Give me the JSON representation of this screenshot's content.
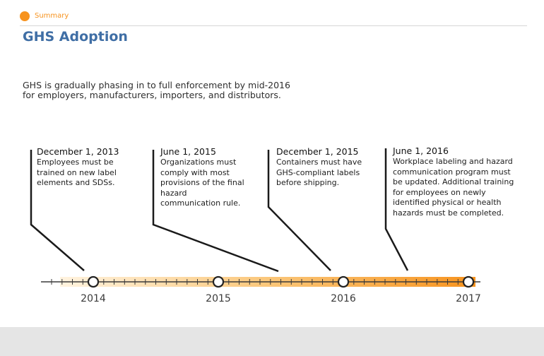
{
  "breadcrumb": {
    "label": "Summary"
  },
  "page": {
    "title": "GHS Adoption",
    "intro": "GHS is gradually phasing in to full enforcement by mid-2016 for employers, manufacturers, importers, and distributors."
  },
  "milestones": [
    {
      "date": "December 1, 2013",
      "description": "Employees must be trained on new label elements and SDSs."
    },
    {
      "date": "June 1, 2015",
      "description": "Organizations must comply with most provisions of the final hazard communication rule."
    },
    {
      "date": "December 1, 2015",
      "description": "Containers must have GHS-compliant labels before shipping."
    },
    {
      "date": "June 1, 2016",
      "description": "Workplace labeling and hazard communication program must be updated.  Additional training for employees on newly identified physical or health hazards must be completed."
    }
  ],
  "timeline": {
    "years": [
      "2014",
      "2015",
      "2016",
      "2017"
    ],
    "bar_color_start": "#fff3df",
    "bar_color_end": "#f7931e"
  }
}
